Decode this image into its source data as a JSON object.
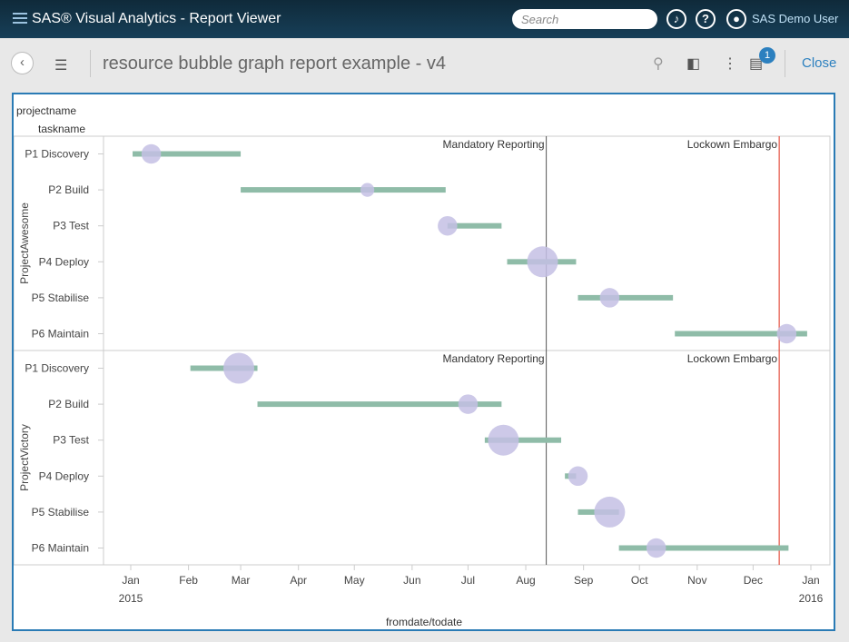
{
  "header": {
    "app_title": "SAS® Visual Analytics - Report Viewer",
    "search_placeholder": "Search",
    "user": "SAS Demo User"
  },
  "toolbar": {
    "report_title": "resource bubble graph report example - v4",
    "notification_count": "1",
    "close_label": "Close"
  },
  "colors": {
    "bar": "#8fbca8",
    "bubble": "#c4c0e4",
    "ref_mandatory": "#555555",
    "ref_embargo": "#e0301e",
    "accent": "#2a7bb5"
  },
  "chart_data": {
    "type": "bubble-gantt",
    "row_header_1": "projectname",
    "row_header_2": "taskname",
    "xlabel": "fromdate/todate",
    "x_range": [
      "2015-01-01",
      "2016-01-01"
    ],
    "x_ticks": [
      {
        "m": "Jan",
        "y": "2015"
      },
      {
        "m": "Feb"
      },
      {
        "m": "Mar"
      },
      {
        "m": "Apr"
      },
      {
        "m": "May"
      },
      {
        "m": "Jun"
      },
      {
        "m": "Jul"
      },
      {
        "m": "Aug"
      },
      {
        "m": "Sep"
      },
      {
        "m": "Oct"
      },
      {
        "m": "Nov"
      },
      {
        "m": "Dec"
      },
      {
        "m": "Jan",
        "y": "2016"
      }
    ],
    "reference_lines": [
      {
        "label": "Mandatory Reporting",
        "date": "2015-08-12",
        "color": "#555555"
      },
      {
        "label": "Lockown Embargo",
        "date": "2015-12-15",
        "color": "#e0301e"
      }
    ],
    "projects": [
      {
        "name": "ProjectAwesome",
        "tasks": [
          {
            "task": "P1 Discovery",
            "from": "2015-01-02",
            "to": "2015-03-01",
            "bubble": "2015-01-12",
            "size": 2
          },
          {
            "task": "P2 Build",
            "from": "2015-03-01",
            "to": "2015-06-19",
            "bubble": "2015-05-08",
            "size": 1
          },
          {
            "task": "P3 Test",
            "from": "2015-06-20",
            "to": "2015-07-19",
            "bubble": "2015-06-20",
            "size": 2
          },
          {
            "task": "P4 Deploy",
            "from": "2015-07-22",
            "to": "2015-08-28",
            "bubble": "2015-08-10",
            "size": 5
          },
          {
            "task": "P5 Stabilise",
            "from": "2015-08-29",
            "to": "2015-10-19",
            "bubble": "2015-09-15",
            "size": 2
          },
          {
            "task": "P6 Maintain",
            "from": "2015-10-20",
            "to": "2015-12-30",
            "bubble": "2015-12-19",
            "size": 2
          }
        ]
      },
      {
        "name": "ProjectVictory",
        "tasks": [
          {
            "task": "P1 Discovery",
            "from": "2015-02-02",
            "to": "2015-03-10",
            "bubble": "2015-02-28",
            "size": 5
          },
          {
            "task": "P2 Build",
            "from": "2015-03-10",
            "to": "2015-07-19",
            "bubble": "2015-07-01",
            "size": 2
          },
          {
            "task": "P3 Test",
            "from": "2015-07-10",
            "to": "2015-08-20",
            "bubble": "2015-07-20",
            "size": 5
          },
          {
            "task": "P4 Deploy",
            "from": "2015-08-22",
            "to": "2015-08-28",
            "bubble": "2015-08-29",
            "size": 2
          },
          {
            "task": "P5 Stabilise",
            "from": "2015-08-29",
            "to": "2015-09-20",
            "bubble": "2015-09-15",
            "size": 5
          },
          {
            "task": "P6 Maintain",
            "from": "2015-09-20",
            "to": "2015-12-20",
            "bubble": "2015-10-10",
            "size": 2
          }
        ]
      }
    ]
  }
}
